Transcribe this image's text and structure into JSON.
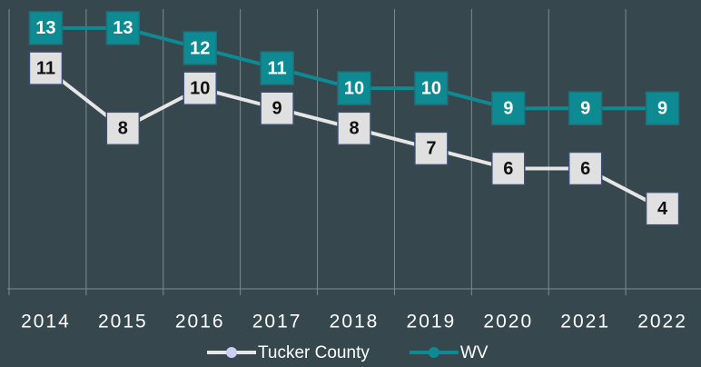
{
  "chart_data": {
    "type": "line",
    "categories": [
      "2014",
      "2015",
      "2016",
      "2017",
      "2018",
      "2019",
      "2020",
      "2021",
      "2022"
    ],
    "series": [
      {
        "name": "Tucker County",
        "color": "#e6e6e6",
        "values": [
          11,
          8,
          10,
          9,
          8,
          7,
          6,
          6,
          4
        ]
      },
      {
        "name": "WV",
        "color": "#0e8a93",
        "values": [
          13,
          13,
          12,
          11,
          10,
          10,
          9,
          9,
          9
        ]
      }
    ],
    "ylim": [
      0,
      14.4
    ]
  }
}
